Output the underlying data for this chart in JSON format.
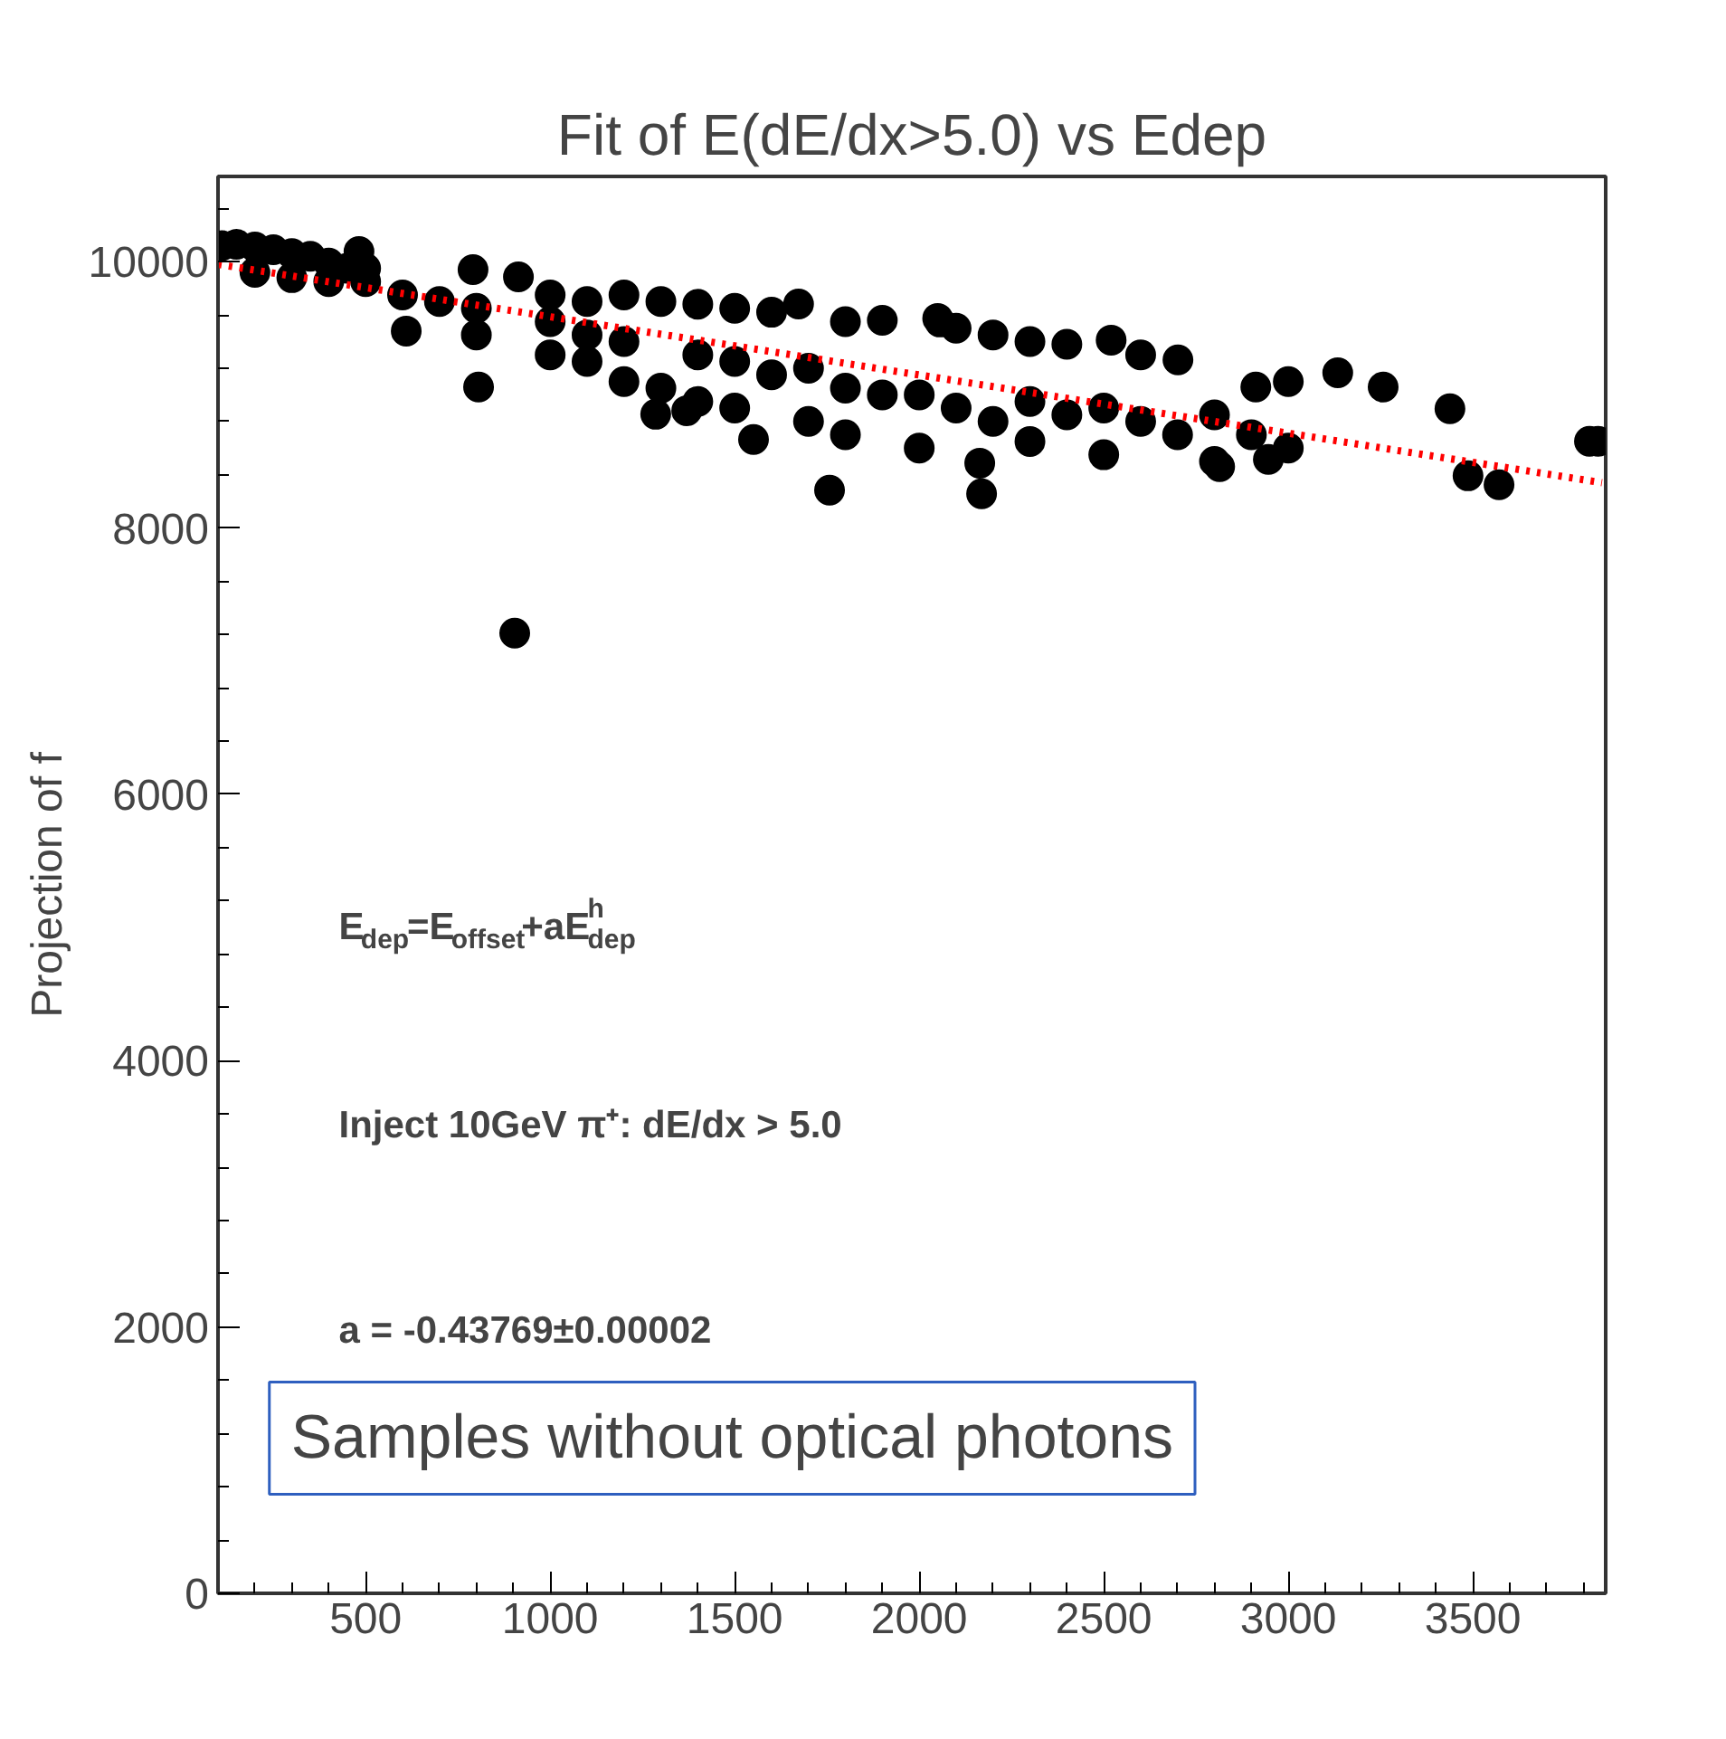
{
  "chart_data": {
    "type": "scatter",
    "title": "Fit of E(dE/dx>5.0) vs Edep",
    "ylabel": "Projection of f",
    "xlim": [
      100,
      3860
    ],
    "ylim": [
      0,
      10640
    ],
    "xticks": [
      500,
      1000,
      1500,
      2000,
      2500,
      3000,
      3500
    ],
    "yticks": [
      0,
      2000,
      4000,
      6000,
      8000,
      10000
    ],
    "grid": false,
    "series": [
      {
        "color": "#000000",
        "marker": "circle",
        "x": [
          110,
          150,
          200,
          250,
          300,
          350,
          400,
          450,
          200,
          300,
          400,
          482,
          500,
          500,
          600,
          700,
          791,
          800,
          800,
          914,
          1000,
          1000,
          1000,
          1100,
          1100,
          1100,
          1200,
          1200,
          1200,
          1300,
          1300,
          1400,
          1400,
          1400,
          1500,
          1500,
          1500,
          1600,
          1600,
          1673,
          1700,
          1700,
          1800,
          1800,
          1800,
          1900,
          1900,
          2050,
          2000,
          2000,
          2100,
          2100,
          2200,
          2200,
          2300,
          2300,
          2300,
          2400,
          2400,
          2520,
          2500,
          2500,
          2600,
          2600,
          2701,
          2700,
          2800,
          2800,
          2900,
          3000,
          3000,
          610,
          806,
          904,
          1286,
          1370,
          1551,
          1757,
          2169,
          2164,
          2056,
          2814,
          2912,
          2946,
          3134,
          3257,
          3438,
          3487,
          3571,
          3816,
          3840
        ],
        "values": [
          10120,
          10130,
          10110,
          10090,
          10060,
          10040,
          9990,
          9950,
          9920,
          9880,
          9850,
          10076,
          9850,
          9950,
          9750,
          9700,
          9940,
          9450,
          9650,
          9886,
          9300,
          9550,
          9750,
          9700,
          9250,
          9450,
          9750,
          9100,
          9400,
          9700,
          9050,
          9680,
          8950,
          9300,
          9650,
          8900,
          9250,
          9620,
          9150,
          9682,
          8800,
          9200,
          9550,
          8700,
          9050,
          9560,
          9000,
          9574,
          8600,
          9000,
          9500,
          8900,
          9450,
          8800,
          9400,
          8650,
          8950,
          9380,
          8850,
          9411,
          8550,
          8900,
          9300,
          8800,
          9262,
          8700,
          8500,
          8850,
          8700,
          9100,
          8600,
          9479,
          9058,
          7211,
          8854,
          8881,
          8664,
          8284,
          8257,
          8487,
          9547,
          8460,
          9058,
          8515,
          9166,
          9058,
          8895,
          8392,
          8325,
          8651,
          8651
        ]
      },
      {
        "type": "line",
        "color": "#ff0000",
        "line_style": "dotted",
        "x": [
          100,
          3850
        ],
        "values": [
          9980,
          8340
        ]
      }
    ],
    "annotations": [
      "E$_{dep}$=E$_{offset}$+aE$^{h}$$_{dep}$",
      "Inject 10GeV  π⁺: dE/dx > 5.0",
      "a = -0.43769±0.00002",
      "Samples without optical photons"
    ]
  }
}
